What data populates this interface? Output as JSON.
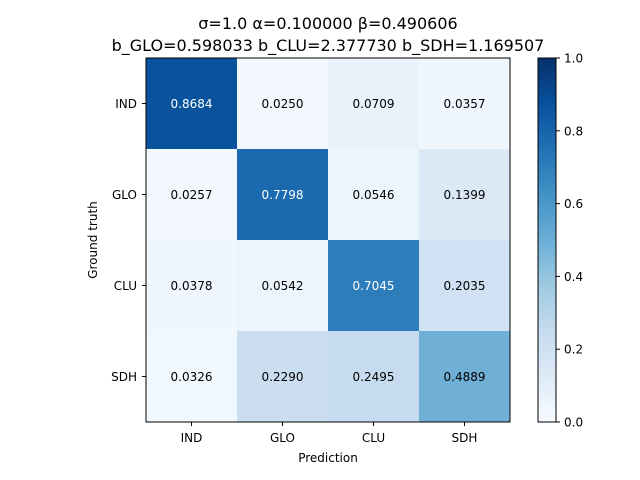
{
  "chart_data": {
    "type": "heatmap",
    "title_line1": "σ=1.0   α=0.100000   β=0.490606",
    "title_line2": "b_GLO=0.598033   b_CLU=2.377730   b_SDH=1.169507",
    "xlabel": "Prediction",
    "ylabel": "Ground truth",
    "x_categories": [
      "IND",
      "GLO",
      "CLU",
      "SDH"
    ],
    "y_categories": [
      "IND",
      "GLO",
      "CLU",
      "SDH"
    ],
    "values": [
      [
        0.8684,
        0.025,
        0.0709,
        0.0357
      ],
      [
        0.0257,
        0.7798,
        0.0546,
        0.1399
      ],
      [
        0.0378,
        0.0542,
        0.7045,
        0.2035
      ],
      [
        0.0326,
        0.229,
        0.2495,
        0.4889
      ]
    ],
    "value_labels": [
      [
        "0.8684",
        "0.0250",
        "0.0709",
        "0.0357"
      ],
      [
        "0.0257",
        "0.7798",
        "0.0546",
        "0.1399"
      ],
      [
        "0.0378",
        "0.0542",
        "0.7045",
        "0.2035"
      ],
      [
        "0.0326",
        "0.2290",
        "0.2495",
        "0.4889"
      ]
    ],
    "colormap": "Blues",
    "colorbar": {
      "vmin": 0.0,
      "vmax": 1.0,
      "ticks": [
        0.0,
        0.2,
        0.4,
        0.6,
        0.8,
        1.0
      ],
      "tick_labels": [
        "0.0",
        "0.2",
        "0.4",
        "0.6",
        "0.8",
        "1.0"
      ]
    },
    "grid": false
  }
}
